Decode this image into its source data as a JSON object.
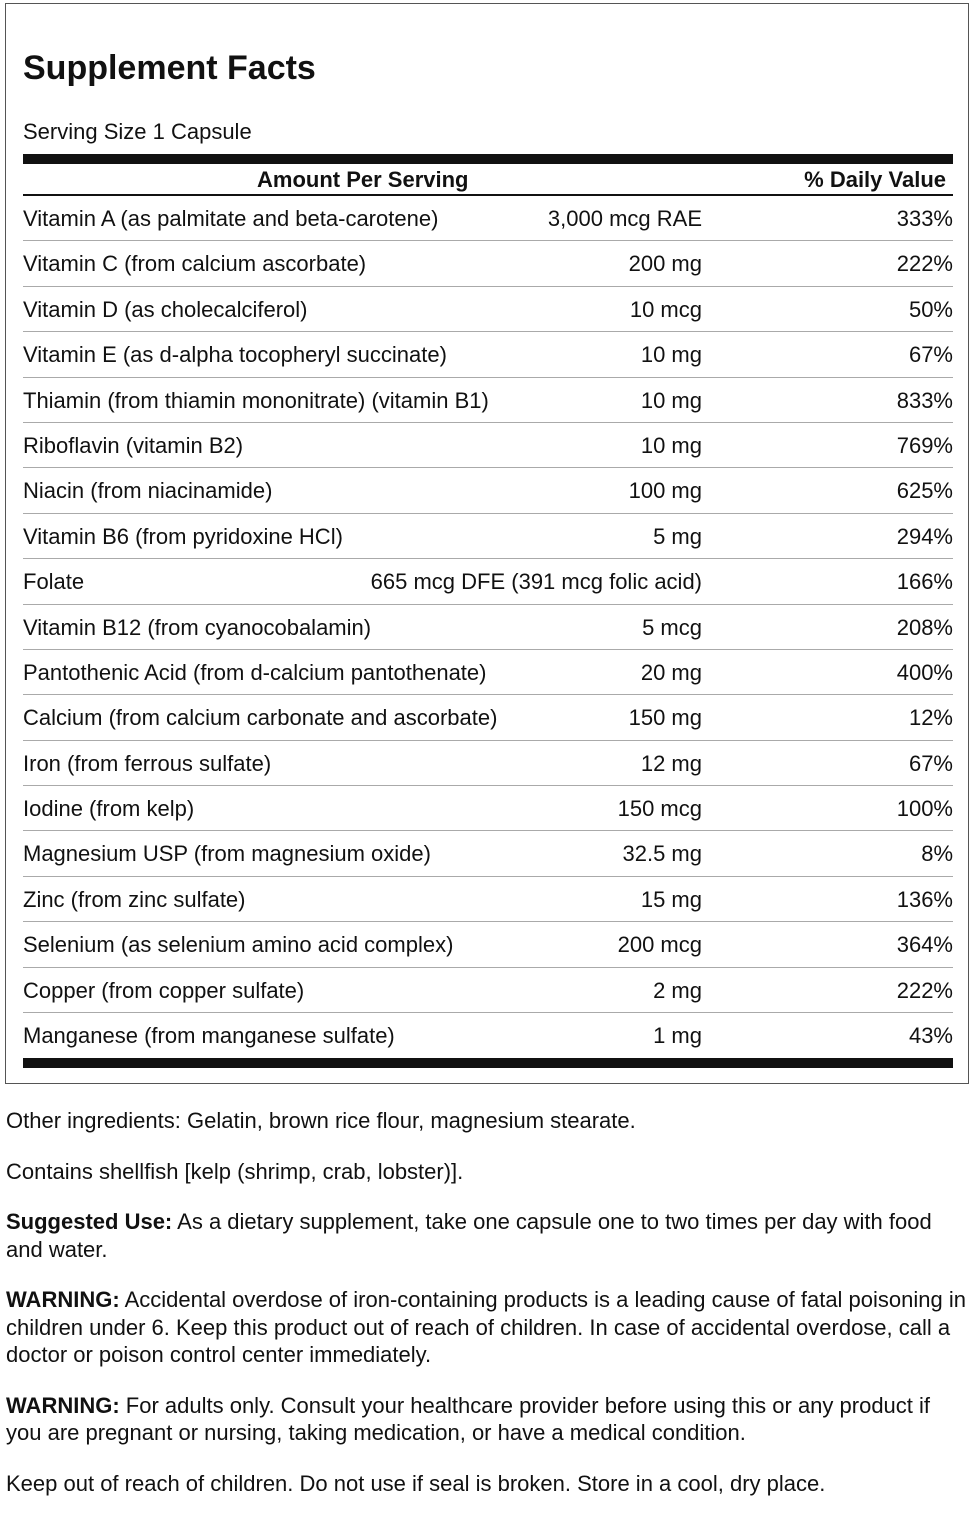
{
  "label": {
    "title": "Supplement Facts",
    "serving_size": "Serving Size 1 Capsule",
    "header": {
      "amount": "Amount Per Serving",
      "daily_value": "% Daily Value"
    },
    "rows": [
      [
        "Vitamin A (as palmitate and beta-carotene)",
        "3,000 mcg RAE",
        "333%"
      ],
      [
        "Vitamin C (from calcium ascorbate)",
        "200 mg",
        "222%"
      ],
      [
        "Vitamin D (as cholecalciferol)",
        "10 mcg",
        "50%"
      ],
      [
        "Vitamin E (as d-alpha tocopheryl succinate)",
        "10 mg",
        "67%"
      ],
      [
        "Thiamin (from thiamin mononitrate) (vitamin B1)",
        "10 mg",
        "833%"
      ],
      [
        "Riboflavin (vitamin B2)",
        "10 mg",
        "769%"
      ],
      [
        "Niacin (from niacinamide)",
        "100 mg",
        "625%"
      ],
      [
        "Vitamin B6 (from pyridoxine HCl)",
        "5 mg",
        "294%"
      ],
      [
        "Folate",
        "665 mcg DFE (391 mcg folic acid)",
        "166%"
      ],
      [
        "Vitamin B12 (from cyanocobalamin)",
        "5 mcg",
        "208%"
      ],
      [
        "Pantothenic Acid (from d-calcium pantothenate)",
        "20 mg",
        "400%"
      ],
      [
        "Calcium (from calcium carbonate and ascorbate)",
        "150 mg",
        "12%"
      ],
      [
        "Iron (from ferrous sulfate)",
        "12 mg",
        "67%"
      ],
      [
        "Iodine (from kelp)",
        "150 mcg",
        "100%"
      ],
      [
        "Magnesium USP (from magnesium oxide)",
        "32.5 mg",
        "8%"
      ],
      [
        "Zinc (from zinc sulfate)",
        "15 mg",
        "136%"
      ],
      [
        "Selenium (as selenium amino acid complex)",
        "200 mcg",
        "364%"
      ],
      [
        "Copper (from copper sulfate)",
        "2 mg",
        "222%"
      ],
      [
        "Manganese (from manganese sulfate)",
        "1 mg",
        "43%"
      ]
    ]
  },
  "notes": {
    "other_ingredients": "Other ingredients: Gelatin, brown rice flour, magnesium stearate.",
    "contains": "Contains shellfish [kelp (shrimp, crab, lobster)].",
    "suggested_use": {
      "label": "Suggested Use:",
      "text": "As a dietary supplement, take one capsule one to two times per day with food and water."
    },
    "warning_1": {
      "label": "WARNING:",
      "text": "Accidental overdose of iron-containing products is a leading cause of fatal poisoning in children under 6. Keep this product out of reach of children. In case of accidental overdose, call a doctor or poison control center immediately."
    },
    "warning_2": {
      "label": "WARNING:",
      "text": "For adults only. Consult your healthcare provider before using this or any product if you are pregnant or nursing, taking medication, or have a medical condition."
    },
    "storage": "Keep out of reach of children. Do not use if seal is broken. Store in a cool, dry place."
  }
}
